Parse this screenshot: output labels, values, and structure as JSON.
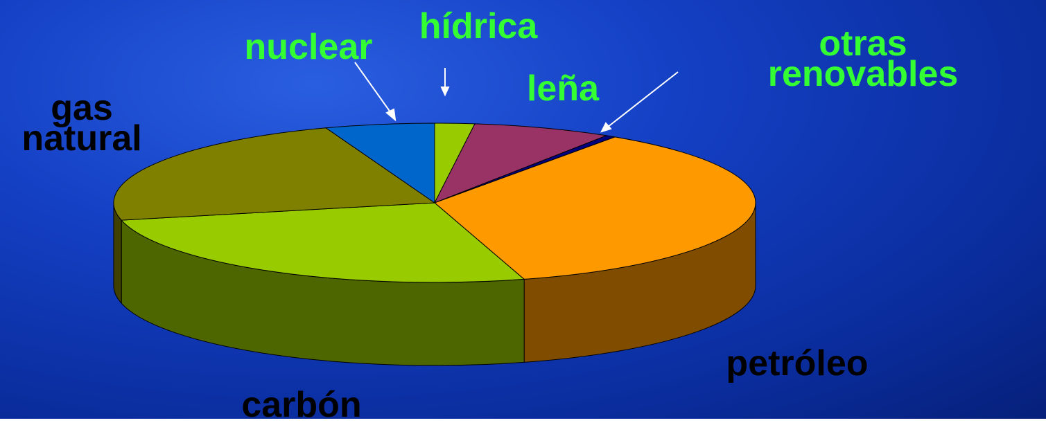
{
  "chart_data": {
    "type": "pie",
    "categories": [
      "hídrica",
      "leña",
      "otras renovables",
      "petróleo",
      "carbón",
      "gas natural",
      "nuclear"
    ],
    "values": [
      2,
      7,
      0.5,
      36,
      26,
      23,
      5.5
    ],
    "colors": [
      "#99cc00",
      "#993366",
      "#000080",
      "#ff9900",
      "#99cc00",
      "#808000",
      "#0066cc"
    ],
    "three_d": true
  }
}
